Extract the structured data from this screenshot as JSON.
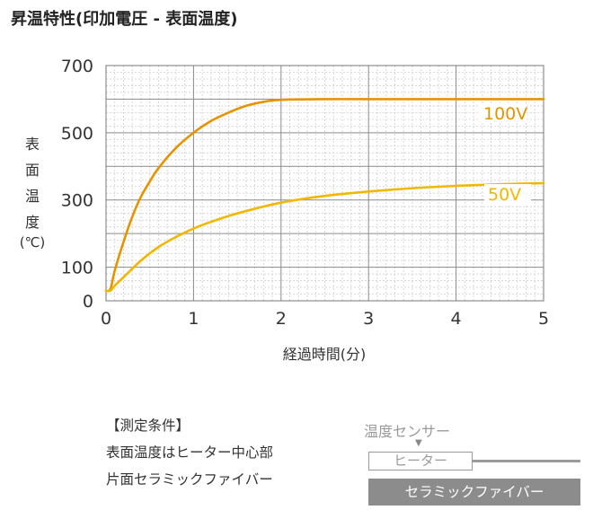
{
  "header": {
    "title": "昇温特性(印加電圧 - 表面温度)"
  },
  "chart_data": {
    "type": "line",
    "title": "昇温特性(印加電圧 - 表面温度)",
    "xlabel": "経過時間(分)",
    "ylabel": [
      "表",
      "面",
      "温",
      "度",
      "(℃)"
    ],
    "xlim": [
      0,
      5
    ],
    "ylim": [
      0,
      700
    ],
    "xticks": [
      "0",
      "1",
      "2",
      "3",
      "4",
      "5"
    ],
    "yticks": [
      {
        "value": 0,
        "label": "0"
      },
      {
        "value": 100,
        "label": "100"
      },
      {
        "value": 300,
        "label": "300"
      },
      {
        "value": 500,
        "label": "500"
      },
      {
        "value": 700,
        "label": "700"
      }
    ],
    "grid": true,
    "series": [
      {
        "name": "100V",
        "color": "#e69300",
        "x": [
          0,
          0.05,
          0.1,
          0.2,
          0.3,
          0.4,
          0.5,
          0.6,
          0.8,
          1.0,
          1.2,
          1.4,
          1.6,
          1.8,
          2.0,
          2.5,
          3.0,
          4.0,
          5.0
        ],
        "y": [
          30,
          35,
          90,
          175,
          250,
          310,
          355,
          395,
          455,
          500,
          535,
          560,
          580,
          592,
          598,
          600,
          600,
          600,
          600
        ]
      },
      {
        "name": "50V",
        "color": "#f2b700",
        "x": [
          0,
          0.05,
          0.1,
          0.2,
          0.4,
          0.6,
          0.8,
          1.0,
          1.2,
          1.5,
          2.0,
          2.5,
          3.0,
          3.5,
          4.0,
          4.5,
          5.0
        ],
        "y": [
          30,
          30,
          45,
          70,
          120,
          160,
          190,
          215,
          235,
          260,
          292,
          312,
          325,
          335,
          342,
          347,
          350
        ]
      }
    ]
  },
  "conditions": {
    "heading": "【測定条件】",
    "line1": "表面温度はヒーター中心部",
    "line2": "片面セラミックファイバー"
  },
  "diagram": {
    "sensor_label": "温度センサー",
    "arrow": "▼",
    "heater_label": "ヒーター",
    "fiber_label": "セラミックファイバー"
  }
}
